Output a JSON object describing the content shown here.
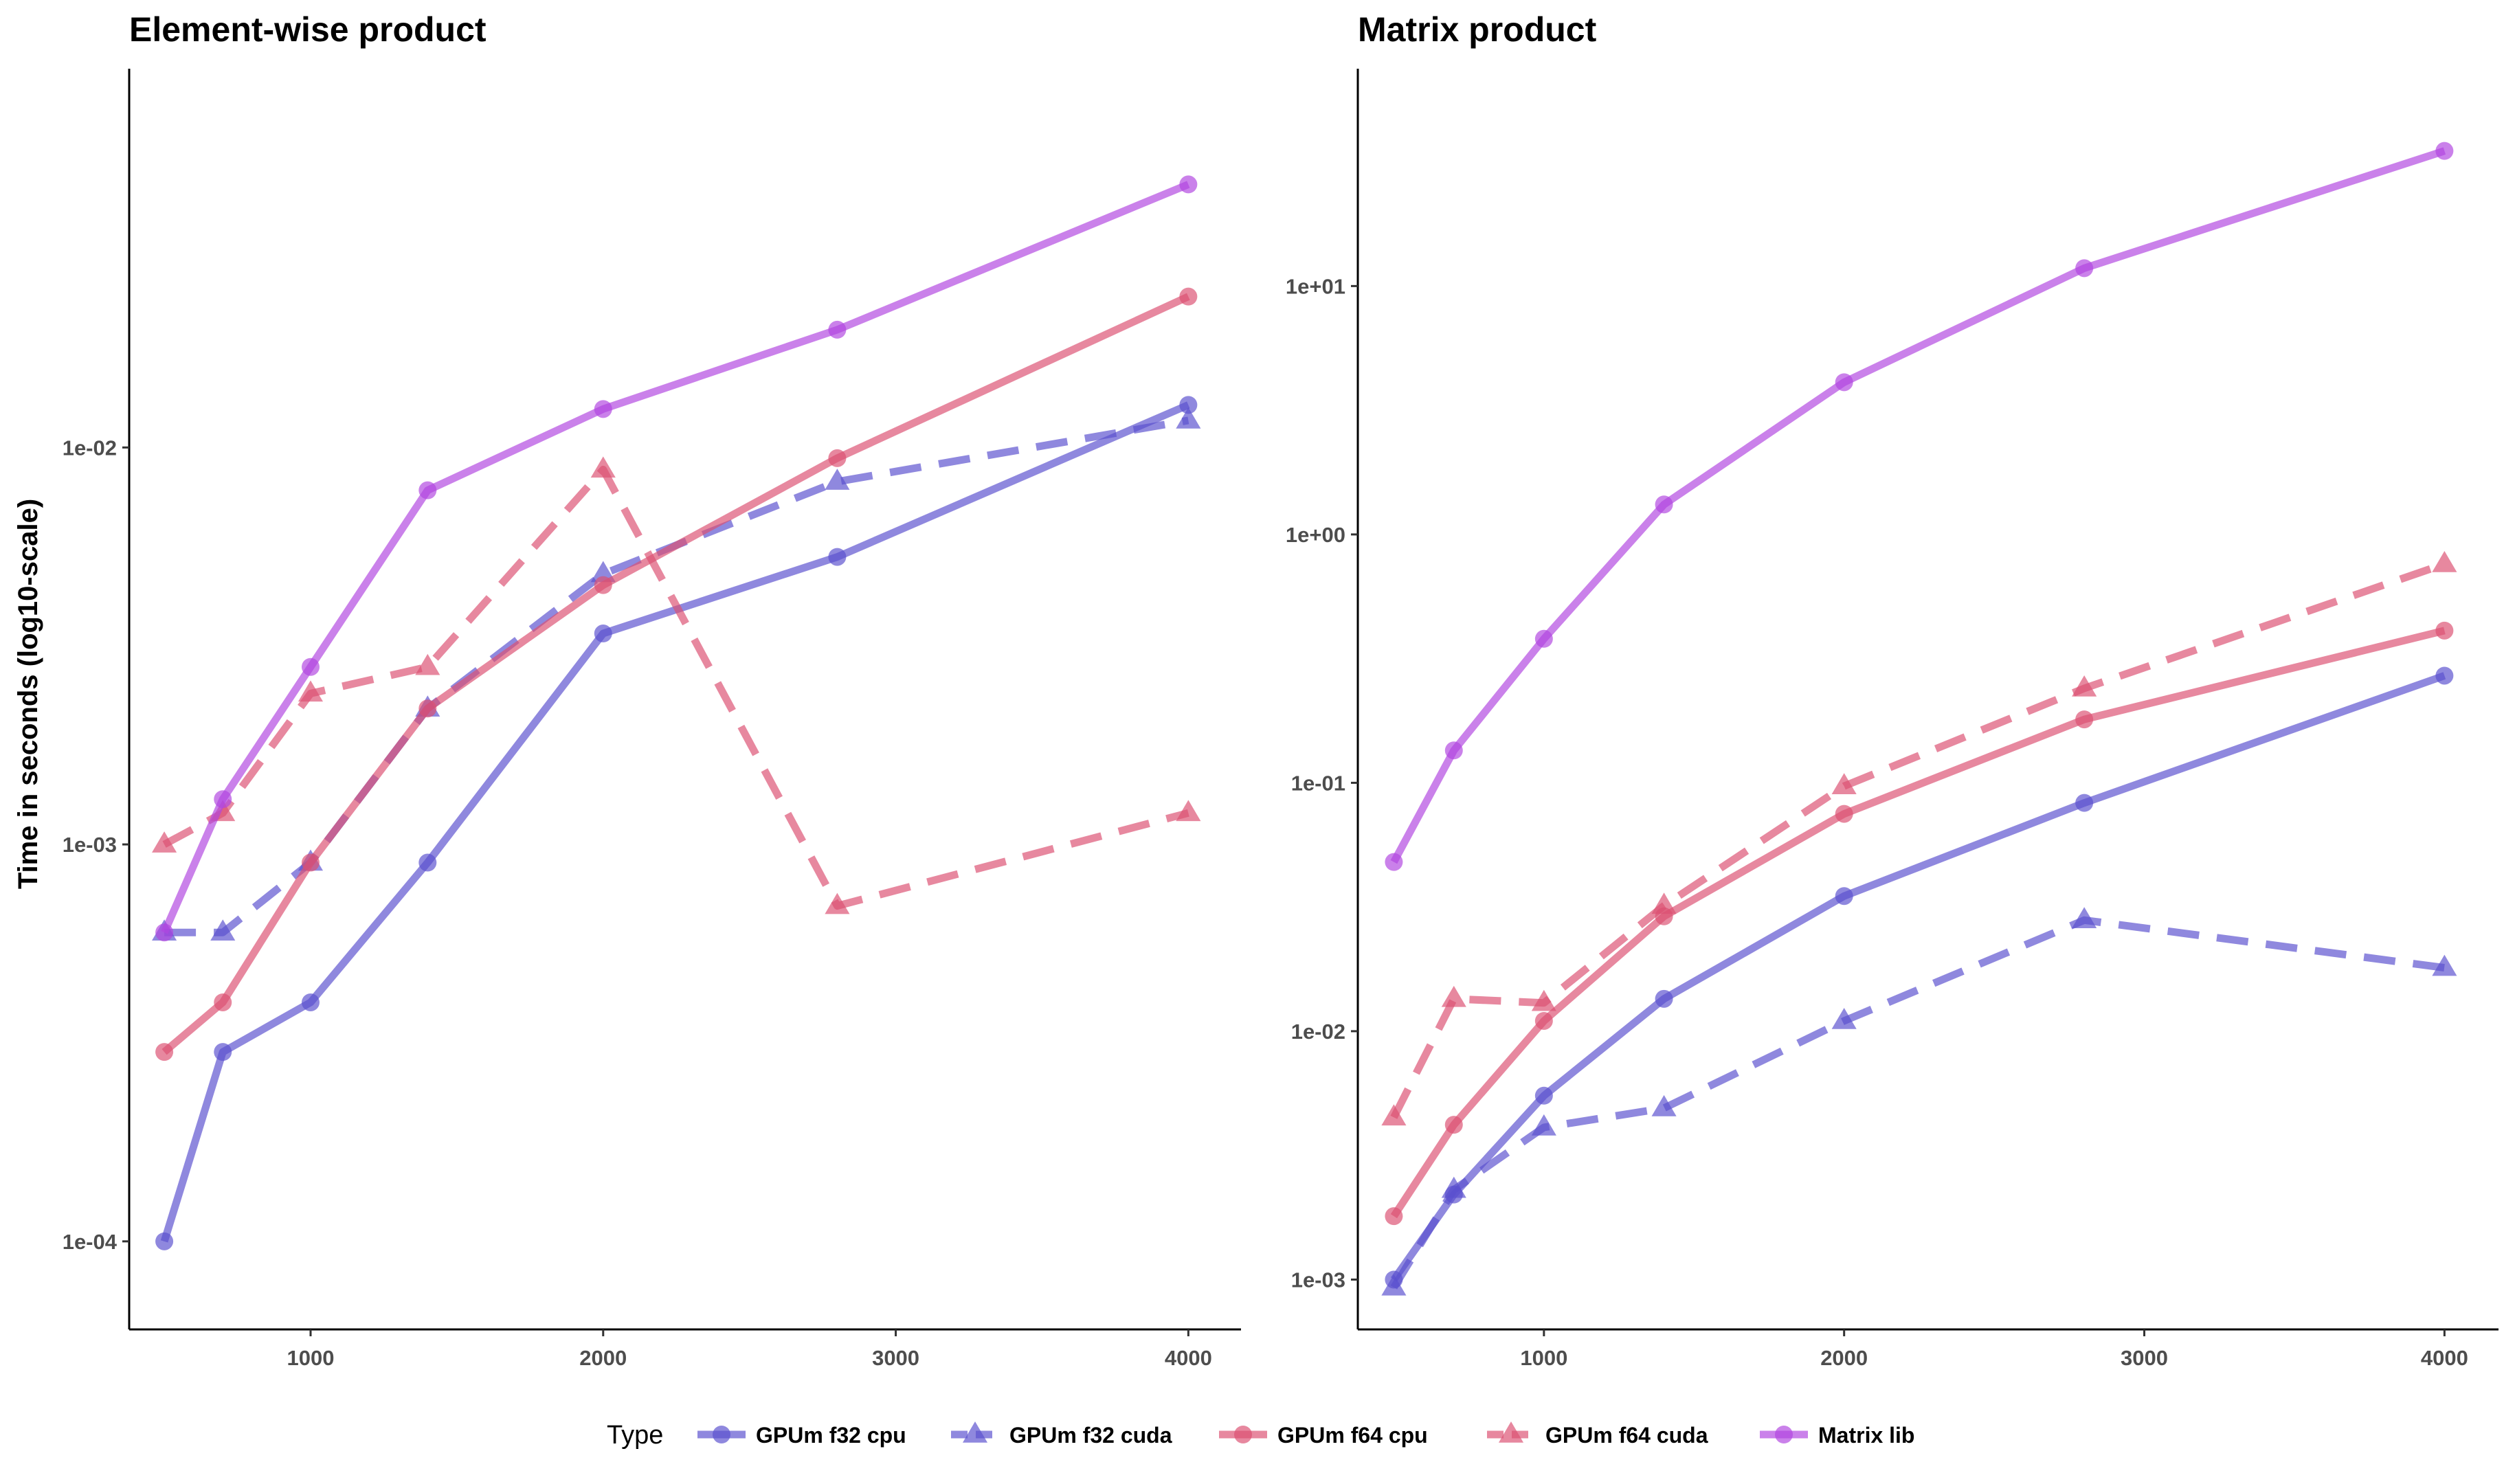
{
  "figure": {
    "y_axis_label": "Time in seconds (log10-scale)",
    "legend_title": "Type"
  },
  "legend": {
    "title": "Type",
    "entries": [
      {
        "name": "GPUm f32 cpu",
        "color": "#5a4fcf",
        "shape": "circle",
        "dash": false
      },
      {
        "name": "GPUm f32 cuda",
        "color": "#5a4fcf",
        "shape": "triangle",
        "dash": true
      },
      {
        "name": "GPUm f64 cpu",
        "color": "#dc4f72",
        "shape": "circle",
        "dash": false
      },
      {
        "name": "GPUm f64 cuda",
        "color": "#dc4f72",
        "shape": "triangle",
        "dash": true
      },
      {
        "name": "Matrix lib",
        "color": "#b146e0",
        "shape": "circle",
        "dash": false
      }
    ]
  },
  "chart_data": [
    {
      "type": "line",
      "title": "Element-wise product",
      "xlabel": "",
      "ylabel": "Time in seconds (log10-scale)",
      "x_scale": "linear",
      "y_scale": "log10",
      "xlim": [
        380,
        4180
      ],
      "ylim": [
        6e-05,
        0.09
      ],
      "x_ticks": [
        1000,
        2000,
        3000,
        4000
      ],
      "x_tick_labels": [
        "1000",
        "2000",
        "3000",
        "4000"
      ],
      "y_ticks": [
        0.0001,
        0.001,
        0.01
      ],
      "y_tick_labels": [
        "1e-04",
        "1e-03",
        "1e-02"
      ],
      "grid": false,
      "legend_position": "bottom",
      "x": [
        500,
        700,
        1000,
        1400,
        2000,
        2800,
        4000
      ],
      "series": [
        {
          "name": "GPUm f32 cpu",
          "values": [
            0.0001,
            0.0003,
            0.0004,
            0.0009,
            0.0034,
            0.0053,
            0.0128
          ]
        },
        {
          "name": "GPUm f32 cuda",
          "values": [
            0.0006,
            0.0006,
            0.0009,
            0.0022,
            0.0048,
            0.0082,
            0.0117
          ]
        },
        {
          "name": "GPUm f64 cpu",
          "values": [
            0.0003,
            0.0004,
            0.0009,
            0.0022,
            0.0045,
            0.0094,
            0.024
          ]
        },
        {
          "name": "GPUm f64 cuda",
          "values": [
            0.001,
            0.0012,
            0.0024,
            0.0028,
            0.0088,
            0.0007,
            0.0012
          ]
        },
        {
          "name": "Matrix lib",
          "values": [
            0.0006,
            0.0013,
            0.0028,
            0.0078,
            0.0125,
            0.0198,
            0.046
          ]
        }
      ]
    },
    {
      "type": "line",
      "title": "Matrix product",
      "xlabel": "",
      "ylabel": "",
      "x_scale": "linear",
      "y_scale": "log10",
      "xlim": [
        380,
        4180
      ],
      "ylim": [
        0.00063,
        75
      ],
      "x_ticks": [
        1000,
        2000,
        3000,
        4000
      ],
      "x_tick_labels": [
        "1000",
        "2000",
        "3000",
        "4000"
      ],
      "y_ticks": [
        0.001,
        0.01,
        0.1,
        1,
        10
      ],
      "y_tick_labels": [
        "1e-03",
        "1e-02",
        "1e-01",
        "1e+00",
        "1e+01"
      ],
      "grid": false,
      "legend_position": "bottom",
      "x": [
        500,
        700,
        1000,
        1400,
        2000,
        2800,
        4000
      ],
      "series": [
        {
          "name": "GPUm f32 cpu",
          "values": [
            0.001,
            0.0022,
            0.0055,
            0.0135,
            0.035,
            0.083,
            0.27
          ]
        },
        {
          "name": "GPUm f32 cuda",
          "values": [
            0.00093,
            0.0023,
            0.0041,
            0.0049,
            0.011,
            0.028,
            0.018
          ]
        },
        {
          "name": "GPUm f64 cpu",
          "values": [
            0.0018,
            0.0042,
            0.011,
            0.029,
            0.075,
            0.18,
            0.41
          ]
        },
        {
          "name": "GPUm f64 cuda",
          "values": [
            0.0045,
            0.0135,
            0.013,
            0.032,
            0.097,
            0.24,
            0.76
          ]
        },
        {
          "name": "Matrix lib",
          "values": [
            0.048,
            0.135,
            0.38,
            1.32,
            4.1,
            11.8,
            35
          ]
        }
      ]
    }
  ]
}
